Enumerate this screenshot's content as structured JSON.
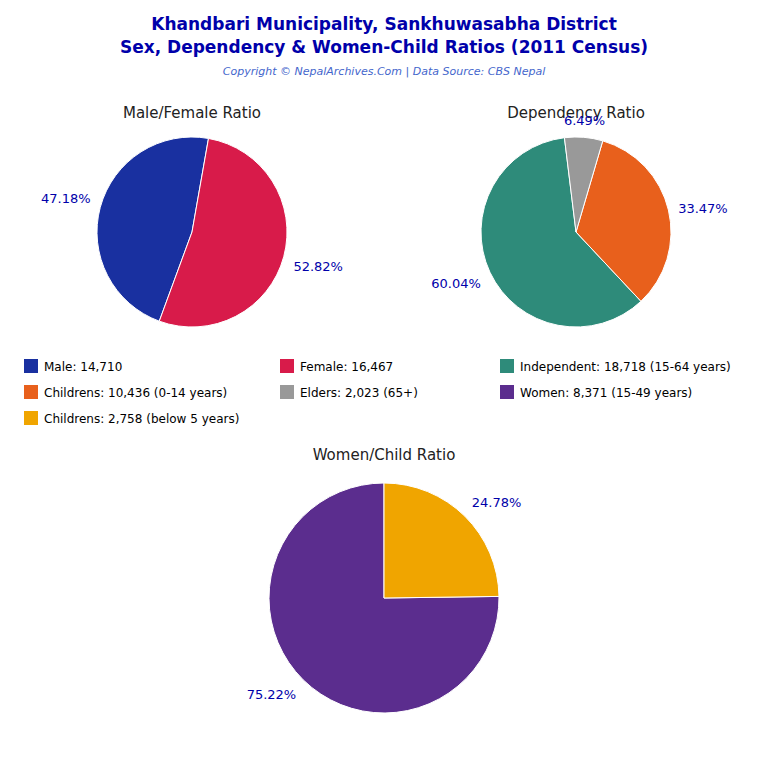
{
  "title": "Khandbari Municipality, Sankhuwasabha District",
  "subtitle": "Sex, Dependency & Women-Child Ratios (2011 Census)",
  "annotations": [
    "Copyright © NepalArchives.Com | Data Source: CBS Nepal"
  ],
  "chart_data": [
    {
      "type": "pie",
      "title": "Male/Female Ratio",
      "categories": [
        "Male: 14,710",
        "Female: 16,467"
      ],
      "values": [
        47.18,
        52.82
      ],
      "value_labels": [
        "47.18%",
        "52.82%"
      ],
      "colors": [
        "#1930A0",
        "#D81B4A"
      ],
      "data_labels": true,
      "legend": "bottom"
    },
    {
      "type": "pie",
      "title": "Dependency Ratio",
      "categories": [
        "Independent: 18,718 (15-64 years)",
        "Childrens: 10,436 (0-14 years)",
        "Elders: 2,023 (65+)"
      ],
      "values": [
        60.04,
        33.47,
        6.49
      ],
      "value_labels": [
        "60.04%",
        "33.47%",
        "6.49%"
      ],
      "colors": [
        "#2E8B7A",
        "#E8601C",
        "#999999"
      ],
      "data_labels": true,
      "legend": "bottom"
    },
    {
      "type": "pie",
      "title": "Women/Child Ratio",
      "categories": [
        "Women: 8,371 (15-49 years)",
        "Childrens: 2,758 (below 5 years)"
      ],
      "values": [
        75.22,
        24.78
      ],
      "value_labels": [
        "75.22%",
        "24.78%"
      ],
      "colors": [
        "#5B2D8E",
        "#F0A500"
      ],
      "data_labels": true,
      "legend": "bottom"
    }
  ]
}
